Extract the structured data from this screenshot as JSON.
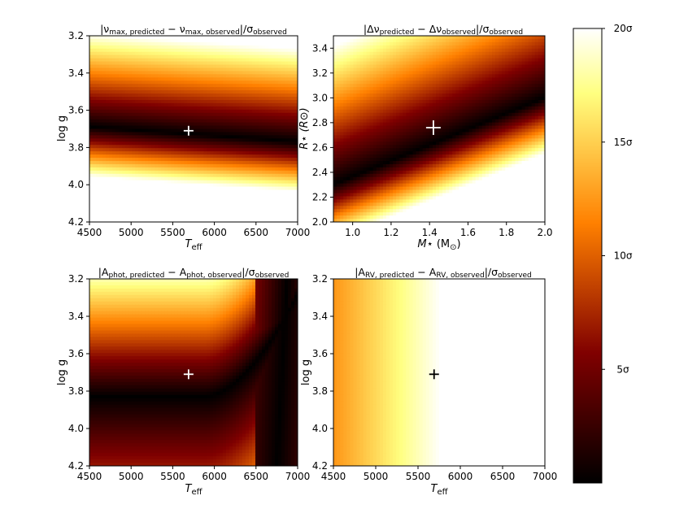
{
  "chart_data": [
    {
      "type": "heatmap",
      "id": "numax",
      "title_parts": {
        "pre": "|ν",
        "sub1": "max, predicted",
        "mid": " − ν",
        "sub2": "max, observed",
        "post": "|/σ",
        "sub3": "observed"
      },
      "xlabel": {
        "main": "T",
        "sub": "eff"
      },
      "ylabel": "log g",
      "xlim": [
        4500,
        7000
      ],
      "ylim": [
        3.2,
        4.2
      ],
      "y_inverted": true,
      "xticks": [
        "4500",
        "5000",
        "5500",
        "6000",
        "6500",
        "7000"
      ],
      "yticks": [
        "3.2",
        "3.4",
        "3.6",
        "3.8",
        "4.0",
        "4.2"
      ],
      "marker": {
        "x": 5690,
        "y": 3.71,
        "color": "#ffffff"
      },
      "best_fit_valley": {
        "x": [
          4500,
          7000
        ],
        "y": [
          3.69,
          3.77
        ]
      }
    },
    {
      "type": "heatmap",
      "id": "dnu",
      "title_parts": {
        "pre": "|Δν",
        "sub1": "predicted",
        "mid": " − Δν",
        "sub2": "observed",
        "post": "|/σ",
        "sub3": "observed"
      },
      "xlabel": {
        "main": "M",
        "mid": "⋆ (M",
        "sub": "⊙",
        "post": ")"
      },
      "ylabel": "R⋆ (R⊙)",
      "xlim": [
        0.9,
        2.0
      ],
      "ylim": [
        2.0,
        3.5
      ],
      "y_inverted": false,
      "xticks": [
        "1.0",
        "1.2",
        "1.4",
        "1.6",
        "1.8",
        "2.0"
      ],
      "yticks": [
        "2.0",
        "2.2",
        "2.4",
        "2.6",
        "2.8",
        "3.0",
        "3.2",
        "3.4"
      ],
      "marker": {
        "x": 1.42,
        "y": 2.76,
        "color": "#ffffff"
      },
      "best_fit_valley": {
        "x": [
          0.9,
          2.0
        ],
        "y": [
          2.3,
          3.0
        ]
      }
    },
    {
      "type": "heatmap",
      "id": "aphot",
      "title_parts": {
        "pre": "|A",
        "sub1": "phot, predicted",
        "mid": " − A",
        "sub2": "phot, observed",
        "post": "|/σ",
        "sub3": "observed"
      },
      "xlabel": {
        "main": "T",
        "sub": "eff"
      },
      "ylabel": "log g",
      "xlim": [
        4500,
        7000
      ],
      "ylim": [
        3.2,
        4.2
      ],
      "y_inverted": true,
      "xticks": [
        "4500",
        "5000",
        "5500",
        "6000",
        "6500",
        "7000"
      ],
      "yticks": [
        "3.2",
        "3.4",
        "3.6",
        "3.8",
        "4.0",
        "4.2"
      ],
      "marker": {
        "x": 5690,
        "y": 3.71,
        "color": "#ffffff"
      }
    },
    {
      "type": "heatmap",
      "id": "arv",
      "title_parts": {
        "pre": "|A",
        "sub1": "RV, predicted",
        "mid": " − A",
        "sub2": "RV, observed",
        "post": "|/σ",
        "sub3": "observed"
      },
      "xlabel": {
        "main": "T",
        "sub": "eff"
      },
      "ylabel": "log g",
      "xlim": [
        4500,
        7000
      ],
      "ylim": [
        3.2,
        4.2
      ],
      "y_inverted": true,
      "xticks": [
        "4500",
        "5000",
        "5500",
        "6000",
        "6500",
        "7000"
      ],
      "yticks": [
        "3.2",
        "3.4",
        "3.6",
        "3.8",
        "4.0",
        "4.2"
      ],
      "marker": {
        "x": 5690,
        "y": 3.71,
        "color": "#000000"
      }
    }
  ],
  "colorbar": {
    "colormap": "afmhot",
    "range_sigma": [
      0,
      20
    ],
    "ticks": [
      {
        "value": 5,
        "label": "5σ"
      },
      {
        "value": 10,
        "label": "10σ"
      },
      {
        "value": 15,
        "label": "15σ"
      },
      {
        "value": 20,
        "label": "20σ"
      }
    ]
  },
  "colormap_stops": [
    "#000000",
    "#400000",
    "#800000",
    "#c04000",
    "#ff8000",
    "#ffc040",
    "#ffff80",
    "#ffffff"
  ]
}
